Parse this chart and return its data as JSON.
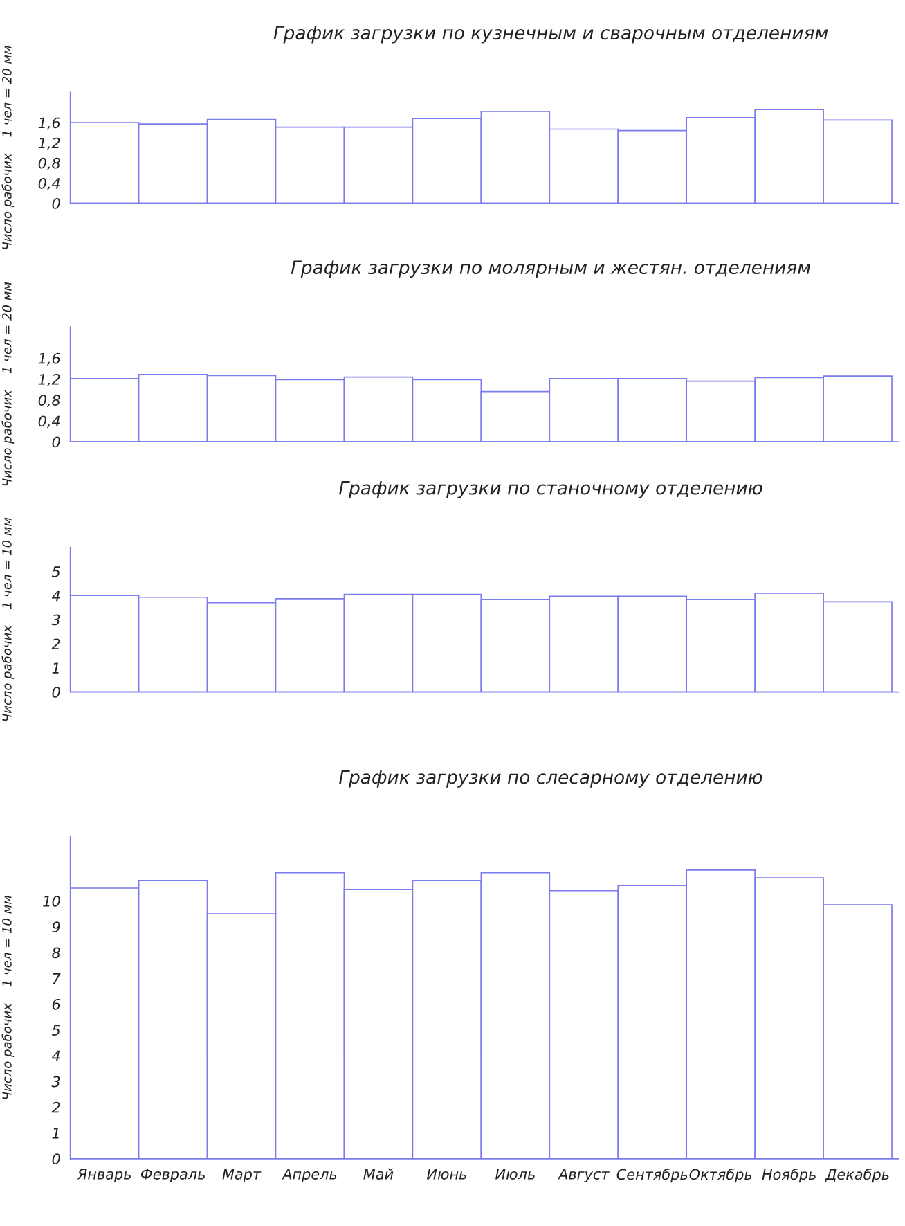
{
  "chart_data": [
    {
      "type": "bar",
      "title": "График загрузки по кузнечным и сварочным отделениям",
      "ylabel": "Число рабочих    1 чел = 20 мм",
      "categories": [
        null,
        null,
        null,
        null,
        null,
        null,
        null,
        null,
        null,
        null,
        null,
        null
      ],
      "values": [
        1.6,
        1.57,
        1.66,
        1.51,
        1.51,
        1.68,
        1.82,
        1.47,
        1.44,
        1.7,
        1.86,
        1.65
      ],
      "color": "#7b7bf0",
      "ylim": [
        0,
        2.2
      ],
      "yticks": [
        0,
        {
          "value": 0.4,
          "label": "0,4"
        },
        {
          "value": 0.8,
          "label": "0,8"
        },
        {
          "value": 1.2,
          "label": "1,2"
        },
        {
          "value": 1.6,
          "label": "1,6"
        }
      ],
      "tick_labels": "y",
      "grid": false
    },
    {
      "type": "bar",
      "title": "График загрузки по молярным и жестян. отделениям",
      "ylabel": "Число рабочих    1 чел = 20 мм",
      "categories": [
        null,
        null,
        null,
        null,
        null,
        null,
        null,
        null,
        null,
        null,
        null,
        null
      ],
      "values": [
        1.21,
        1.29,
        1.27,
        1.19,
        1.24,
        1.19,
        0.96,
        1.21,
        1.21,
        1.16,
        1.23,
        1.26
      ],
      "color": "#7b7bf0",
      "ylim": [
        0,
        2.2
      ],
      "yticks": [
        0,
        {
          "value": 0.4,
          "label": "0,4"
        },
        {
          "value": 0.8,
          "label": "0,8"
        },
        {
          "value": 1.2,
          "label": "1,2"
        },
        {
          "value": 1.6,
          "label": "1,6"
        }
      ],
      "tick_labels": "y",
      "grid": false
    },
    {
      "type": "bar",
      "title": "График загрузки по станочному отделению",
      "ylabel": "Число рабочих    1 чел = 10 мм",
      "categories": [
        null,
        null,
        null,
        null,
        null,
        null,
        null,
        null,
        null,
        null,
        null,
        null
      ],
      "values": [
        4.0,
        3.93,
        3.7,
        3.87,
        4.05,
        4.05,
        3.84,
        3.97,
        3.97,
        3.84,
        4.1,
        3.74
      ],
      "color": "#7b7bf0",
      "ylim": [
        0,
        6
      ],
      "yticks": [
        0,
        1,
        2,
        3,
        4,
        5
      ],
      "tick_labels": "y",
      "grid": false
    },
    {
      "type": "bar",
      "title": "График загрузки по слесарному отделению",
      "ylabel": "Число рабочих    1 чел = 10 мм",
      "categories": [
        "Январь",
        "Февраль",
        "Март",
        "Апрель",
        "Май",
        "Июнь",
        "Июль",
        "Август",
        "Сентябрь",
        "Октябрь",
        "Ноябрь",
        "Декабрь"
      ],
      "values": [
        10.5,
        10.8,
        9.5,
        11.1,
        10.45,
        10.8,
        11.1,
        10.4,
        10.6,
        11.2,
        10.9,
        9.85
      ],
      "color": "#7b7bf0",
      "ylim": [
        0,
        12.5
      ],
      "yticks": [
        0,
        1,
        2,
        3,
        4,
        5,
        6,
        7,
        8,
        9,
        10
      ],
      "grid": false
    }
  ]
}
